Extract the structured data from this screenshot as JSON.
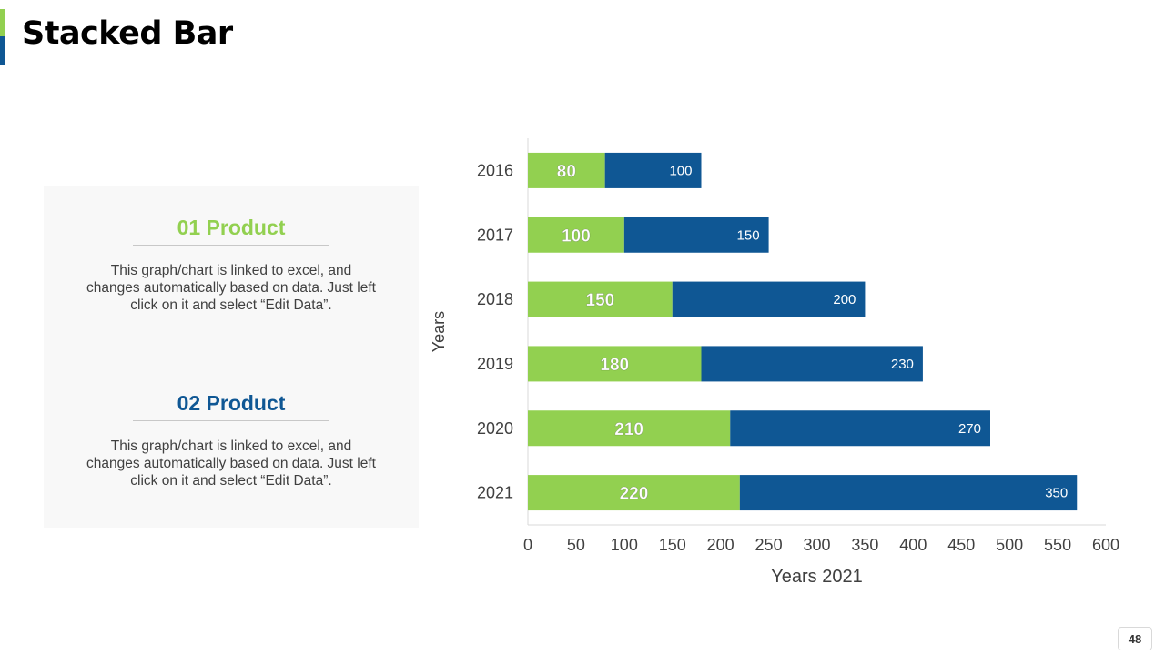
{
  "slide": {
    "title": "Stacked Bar",
    "page_number": "48"
  },
  "products": [
    {
      "title": "01 Product",
      "description": "This graph/chart is linked to excel, and changes automatically based on data. Just left click on it and select “Edit Data”."
    },
    {
      "title": "02 Product",
      "description": "This graph/chart is linked to excel, and changes automatically based on data. Just left click on it and select “Edit Data”."
    }
  ],
  "colors": {
    "series1": "#92d050",
    "series2": "#0f5794",
    "axis": "#d9d9d9",
    "text": "#404040"
  },
  "chart_data": {
    "type": "bar",
    "orientation": "horizontal",
    "stacked": true,
    "categories": [
      "2016",
      "2017",
      "2018",
      "2019",
      "2020",
      "2021"
    ],
    "series": [
      {
        "name": "01 Product",
        "values": [
          80,
          100,
          150,
          180,
          210,
          220
        ]
      },
      {
        "name": "02 Product",
        "values": [
          100,
          150,
          200,
          230,
          270,
          350
        ]
      }
    ],
    "xlabel": "Years 2021",
    "ylabel": "Years",
    "xlim": [
      0,
      600
    ],
    "xticks": [
      0,
      50,
      100,
      150,
      200,
      250,
      300,
      350,
      400,
      450,
      500,
      550,
      600
    ],
    "grid": false
  }
}
